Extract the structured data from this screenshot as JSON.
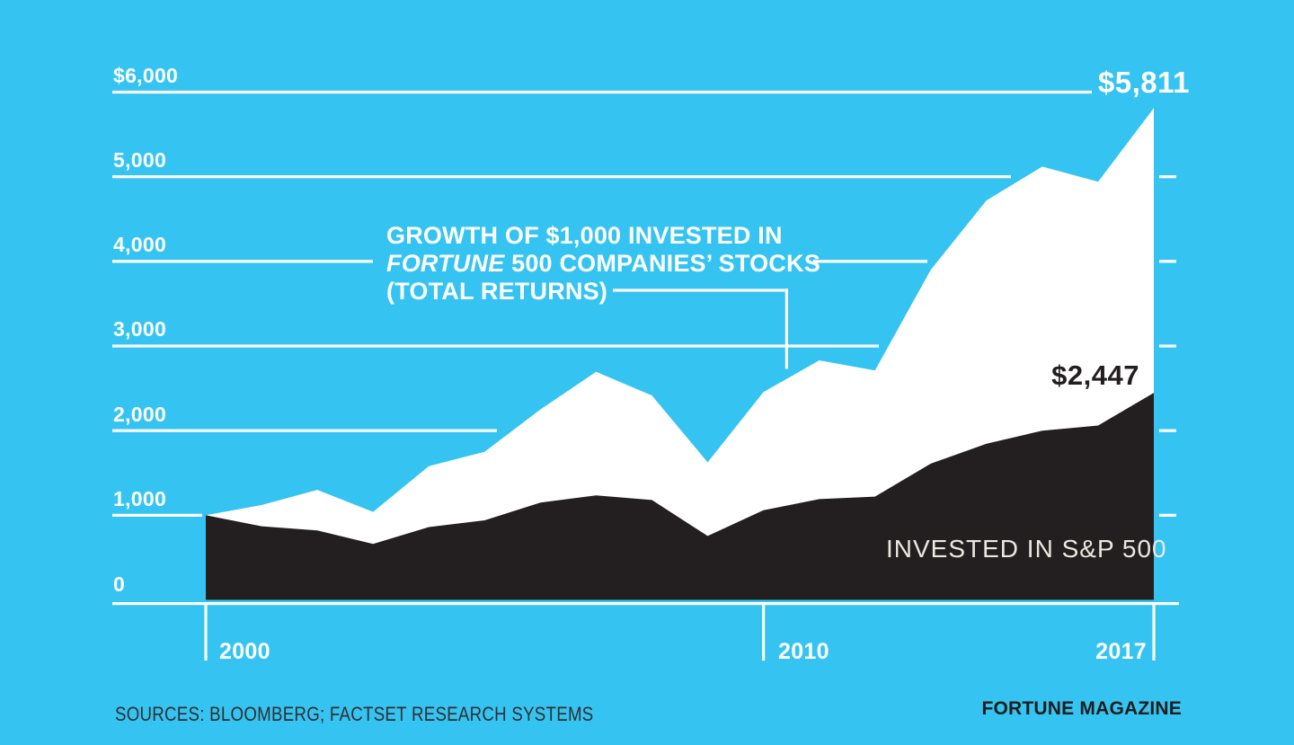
{
  "colors": {
    "background": "#35C4F2",
    "fortune_area": "#FFFFFF",
    "sp_area": "#231F20",
    "grid_axis": "#FFFFFF",
    "sp_label_text": "#EBE8E1",
    "dark_text": "#231F20"
  },
  "annotation": {
    "line1": "GROWTH OF $1,000 INVESTED IN",
    "line2_italic": "FORTUNE",
    "line2_rest": " 500 COMPANIES’ STOCKS",
    "line3": "(TOTAL RETURNS)"
  },
  "labels": {
    "fortune_end_value": "$5,811",
    "sp_end_value": "$2,447",
    "sp_series_label": "INVESTED IN S&P 500",
    "sources": "SOURCES: BLOOMBERG; FACTSET RESEARCH SYSTEMS",
    "credit": "FORTUNE MAGAZINE"
  },
  "chart_data": {
    "type": "area",
    "title": "Growth of $1,000 invested in Fortune 500 companies' stocks (total returns) vs invested in S&P 500",
    "x": [
      2000,
      2001,
      2002,
      2003,
      2004,
      2005,
      2006,
      2007,
      2008,
      2009,
      2010,
      2011,
      2012,
      2013,
      2014,
      2015,
      2016,
      2017
    ],
    "series": [
      {
        "name": "Fortune 500 companies' stocks (total returns)",
        "color": "#FFFFFF",
        "values": [
          1000,
          1120,
          1300,
          1040,
          1580,
          1750,
          2250,
          2695,
          2415,
          1625,
          2455,
          2830,
          2710,
          3900,
          4720,
          5120,
          4940,
          5811
        ]
      },
      {
        "name": "Invested in S&P 500",
        "color": "#231F20",
        "values": [
          1000,
          870,
          820,
          660,
          860,
          940,
          1150,
          1235,
          1180,
          755,
          1060,
          1190,
          1220,
          1610,
          1845,
          2000,
          2060,
          2447
        ]
      }
    ],
    "end_labels": {
      "fortune": 5811,
      "sp": 2447
    },
    "ylim": [
      0,
      6000
    ],
    "grid": true,
    "legend_position": "inline-annotations",
    "y_axis": {
      "tick_labels": [
        "$6,000",
        "5,000",
        "4,000",
        "3,000",
        "2,000",
        "1,000",
        "0"
      ],
      "tick_values": [
        6000,
        5000,
        4000,
        3000,
        2000,
        1000,
        0
      ],
      "right_tick_values": [
        5000,
        4000,
        3000,
        2000,
        1000
      ]
    },
    "x_axis": {
      "tick_labels": [
        "2000",
        "2010",
        "2017"
      ],
      "tick_values": [
        2000,
        2010,
        2017
      ]
    },
    "gridlines": [
      {
        "value": 6000,
        "segments": [
          [
            125,
            1215
          ]
        ]
      },
      {
        "value": 5000,
        "segments": [
          [
            125,
            1125
          ]
        ]
      },
      {
        "value": 4000,
        "segments": [
          [
            125,
            415
          ],
          [
            905,
            1032
          ]
        ]
      },
      {
        "value": 3000,
        "segments": [
          [
            125,
            978
          ]
        ]
      },
      {
        "value": 2000,
        "segments": [
          [
            125,
            553
          ]
        ]
      },
      {
        "value": 1000,
        "segments": [
          [
            125,
            225
          ]
        ]
      }
    ]
  }
}
